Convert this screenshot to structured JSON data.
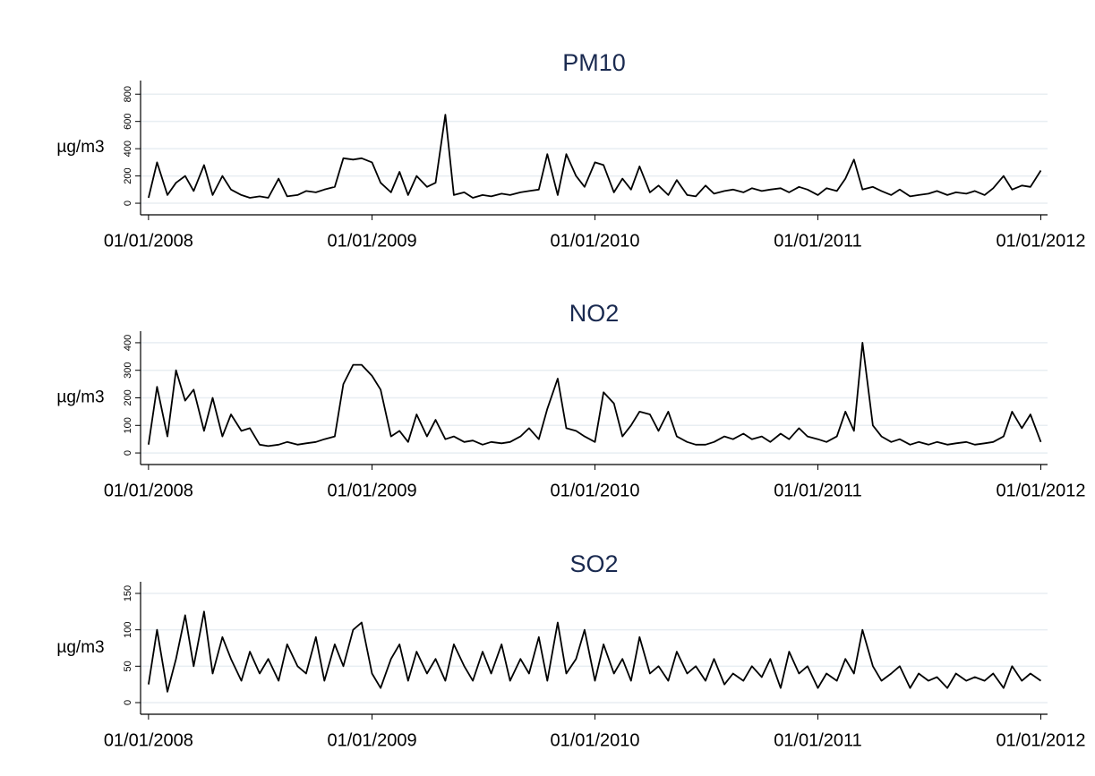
{
  "chart_data": [
    {
      "type": "line",
      "title": "PM10",
      "y_label": "µg/m3",
      "x": [
        "01/01/2008",
        "15/01/2008",
        "01/02/2008",
        "15/02/2008",
        "01/03/2008",
        "15/03/2008",
        "01/04/2008",
        "15/04/2008",
        "01/05/2008",
        "15/05/2008",
        "01/06/2008",
        "15/06/2008",
        "01/07/2008",
        "15/07/2008",
        "01/08/2008",
        "15/08/2008",
        "01/09/2008",
        "15/09/2008",
        "01/10/2008",
        "15/10/2008",
        "01/11/2008",
        "15/11/2008",
        "01/12/2008",
        "15/12/2008",
        "01/01/2009",
        "15/01/2009",
        "01/02/2009",
        "15/02/2009",
        "01/03/2009",
        "15/03/2009",
        "01/04/2009",
        "15/04/2009",
        "01/05/2009",
        "15/05/2009",
        "01/06/2009",
        "15/06/2009",
        "01/07/2009",
        "15/07/2009",
        "01/08/2009",
        "15/08/2009",
        "01/09/2009",
        "15/09/2009",
        "01/10/2009",
        "15/10/2009",
        "01/11/2009",
        "15/11/2009",
        "01/12/2009",
        "15/12/2009",
        "01/01/2010",
        "15/01/2010",
        "01/02/2010",
        "15/02/2010",
        "01/03/2010",
        "15/03/2010",
        "01/04/2010",
        "15/04/2010",
        "01/05/2010",
        "15/05/2010",
        "01/06/2010",
        "15/06/2010",
        "01/07/2010",
        "15/07/2010",
        "01/08/2010",
        "15/08/2010",
        "01/09/2010",
        "15/09/2010",
        "01/10/2010",
        "15/10/2010",
        "01/11/2010",
        "15/11/2010",
        "01/12/2010",
        "15/12/2010",
        "01/01/2011",
        "15/01/2011",
        "01/02/2011",
        "15/02/2011",
        "01/03/2011",
        "15/03/2011",
        "01/04/2011",
        "15/04/2011",
        "01/05/2011",
        "15/05/2011",
        "01/06/2011",
        "15/06/2011",
        "01/07/2011",
        "15/07/2011",
        "01/08/2011",
        "15/08/2011",
        "01/09/2011",
        "15/09/2011",
        "01/10/2011",
        "15/10/2011",
        "01/11/2011",
        "15/11/2011",
        "01/12/2011",
        "15/12/2011",
        "01/01/2012"
      ],
      "series": [
        {
          "color": "#000000",
          "values": [
            40,
            300,
            60,
            150,
            200,
            90,
            280,
            60,
            200,
            100,
            60,
            40,
            50,
            40,
            180,
            50,
            60,
            90,
            80,
            100,
            120,
            330,
            320,
            330,
            300,
            150,
            80,
            230,
            60,
            200,
            120,
            150,
            650,
            60,
            80,
            40,
            60,
            50,
            70,
            60,
            80,
            90,
            100,
            360,
            60,
            360,
            200,
            120,
            300,
            280,
            80,
            180,
            100,
            270,
            80,
            130,
            60,
            170,
            60,
            50,
            130,
            70,
            90,
            100,
            80,
            110,
            90,
            100,
            110,
            80,
            120,
            100,
            60,
            110,
            90,
            180,
            320,
            100,
            120,
            90,
            60,
            100,
            50,
            60,
            70,
            90,
            60,
            80,
            70,
            90,
            60,
            110,
            200,
            100,
            130,
            120,
            240
          ]
        }
      ],
      "xlim": [
        "19/12/2007",
        "12/01/2012"
      ],
      "xticks": [
        "01/01/2008",
        "01/01/2009",
        "01/01/2010",
        "01/01/2011",
        "01/01/2012"
      ],
      "ylim": [
        -85,
        900
      ],
      "yticks": [
        0,
        200,
        400,
        600,
        800
      ],
      "grid": true
    },
    {
      "type": "line",
      "title": "NO2",
      "y_label": "µg/m3",
      "x": [
        "01/01/2008",
        "15/01/2008",
        "01/02/2008",
        "15/02/2008",
        "01/03/2008",
        "15/03/2008",
        "01/04/2008",
        "15/04/2008",
        "01/05/2008",
        "15/05/2008",
        "01/06/2008",
        "15/06/2008",
        "01/07/2008",
        "15/07/2008",
        "01/08/2008",
        "15/08/2008",
        "01/09/2008",
        "15/09/2008",
        "01/10/2008",
        "15/10/2008",
        "01/11/2008",
        "15/11/2008",
        "01/12/2008",
        "15/12/2008",
        "01/01/2009",
        "15/01/2009",
        "01/02/2009",
        "15/02/2009",
        "01/03/2009",
        "15/03/2009",
        "01/04/2009",
        "15/04/2009",
        "01/05/2009",
        "15/05/2009",
        "01/06/2009",
        "15/06/2009",
        "01/07/2009",
        "15/07/2009",
        "01/08/2009",
        "15/08/2009",
        "01/09/2009",
        "15/09/2009",
        "01/10/2009",
        "15/10/2009",
        "01/11/2009",
        "15/11/2009",
        "01/12/2009",
        "15/12/2009",
        "01/01/2010",
        "15/01/2010",
        "01/02/2010",
        "15/02/2010",
        "01/03/2010",
        "15/03/2010",
        "01/04/2010",
        "15/04/2010",
        "01/05/2010",
        "15/05/2010",
        "01/06/2010",
        "15/06/2010",
        "01/07/2010",
        "15/07/2010",
        "01/08/2010",
        "15/08/2010",
        "01/09/2010",
        "15/09/2010",
        "01/10/2010",
        "15/10/2010",
        "01/11/2010",
        "15/11/2010",
        "01/12/2010",
        "15/12/2010",
        "01/01/2011",
        "15/01/2011",
        "01/02/2011",
        "15/02/2011",
        "01/03/2011",
        "15/03/2011",
        "01/04/2011",
        "15/04/2011",
        "01/05/2011",
        "15/05/2011",
        "01/06/2011",
        "15/06/2011",
        "01/07/2011",
        "15/07/2011",
        "01/08/2011",
        "15/08/2011",
        "01/09/2011",
        "15/09/2011",
        "01/10/2011",
        "15/10/2011",
        "01/11/2011",
        "15/11/2011",
        "01/12/2011",
        "15/12/2011",
        "01/01/2012"
      ],
      "series": [
        {
          "color": "#000000",
          "values": [
            30,
            240,
            60,
            300,
            190,
            230,
            80,
            200,
            60,
            140,
            80,
            90,
            30,
            25,
            30,
            40,
            30,
            35,
            40,
            50,
            60,
            250,
            320,
            320,
            280,
            230,
            60,
            80,
            40,
            140,
            60,
            120,
            50,
            60,
            40,
            45,
            30,
            40,
            35,
            40,
            60,
            90,
            50,
            160,
            270,
            90,
            80,
            60,
            40,
            220,
            180,
            60,
            100,
            150,
            140,
            80,
            150,
            60,
            40,
            30,
            30,
            40,
            60,
            50,
            70,
            50,
            60,
            40,
            70,
            50,
            90,
            60,
            50,
            40,
            60,
            150,
            80,
            400,
            100,
            60,
            40,
            50,
            30,
            40,
            30,
            40,
            30,
            35,
            40,
            30,
            35,
            40,
            60,
            150,
            90,
            140,
            40
          ]
        }
      ],
      "xlim": [
        "19/12/2007",
        "12/01/2012"
      ],
      "xticks": [
        "01/01/2008",
        "01/01/2009",
        "01/01/2010",
        "01/01/2011",
        "01/01/2012"
      ],
      "ylim": [
        -42,
        442
      ],
      "yticks": [
        0,
        100,
        200,
        300,
        400
      ],
      "grid": true
    },
    {
      "type": "line",
      "title": "SO2",
      "y_label": "µg/m3",
      "x": [
        "01/01/2008",
        "15/01/2008",
        "01/02/2008",
        "15/02/2008",
        "01/03/2008",
        "15/03/2008",
        "01/04/2008",
        "15/04/2008",
        "01/05/2008",
        "15/05/2008",
        "01/06/2008",
        "15/06/2008",
        "01/07/2008",
        "15/07/2008",
        "01/08/2008",
        "15/08/2008",
        "01/09/2008",
        "15/09/2008",
        "01/10/2008",
        "15/10/2008",
        "01/11/2008",
        "15/11/2008",
        "01/12/2008",
        "15/12/2008",
        "01/01/2009",
        "15/01/2009",
        "01/02/2009",
        "15/02/2009",
        "01/03/2009",
        "15/03/2009",
        "01/04/2009",
        "15/04/2009",
        "01/05/2009",
        "15/05/2009",
        "01/06/2009",
        "15/06/2009",
        "01/07/2009",
        "15/07/2009",
        "01/08/2009",
        "15/08/2009",
        "01/09/2009",
        "15/09/2009",
        "01/10/2009",
        "15/10/2009",
        "01/11/2009",
        "15/11/2009",
        "01/12/2009",
        "15/12/2009",
        "01/01/2010",
        "15/01/2010",
        "01/02/2010",
        "15/02/2010",
        "01/03/2010",
        "15/03/2010",
        "01/04/2010",
        "15/04/2010",
        "01/05/2010",
        "15/05/2010",
        "01/06/2010",
        "15/06/2010",
        "01/07/2010",
        "15/07/2010",
        "01/08/2010",
        "15/08/2010",
        "01/09/2010",
        "15/09/2010",
        "01/10/2010",
        "15/10/2010",
        "01/11/2010",
        "15/11/2010",
        "01/12/2010",
        "15/12/2010",
        "01/01/2011",
        "15/01/2011",
        "01/02/2011",
        "15/02/2011",
        "01/03/2011",
        "15/03/2011",
        "01/04/2011",
        "15/04/2011",
        "01/05/2011",
        "15/05/2011",
        "01/06/2011",
        "15/06/2011",
        "01/07/2011",
        "15/07/2011",
        "01/08/2011",
        "15/08/2011",
        "01/09/2011",
        "15/09/2011",
        "01/10/2011",
        "15/10/2011",
        "01/11/2011",
        "15/11/2011",
        "01/12/2011",
        "15/12/2011",
        "01/01/2012"
      ],
      "series": [
        {
          "color": "#000000",
          "values": [
            25,
            100,
            15,
            60,
            120,
            50,
            125,
            40,
            90,
            60,
            30,
            70,
            40,
            60,
            30,
            80,
            50,
            40,
            90,
            30,
            80,
            50,
            100,
            110,
            40,
            20,
            60,
            80,
            30,
            70,
            40,
            60,
            30,
            80,
            50,
            30,
            70,
            40,
            80,
            30,
            60,
            40,
            90,
            30,
            110,
            40,
            60,
            100,
            30,
            80,
            40,
            60,
            30,
            90,
            40,
            50,
            30,
            70,
            40,
            50,
            30,
            60,
            25,
            40,
            30,
            50,
            35,
            60,
            20,
            70,
            40,
            50,
            20,
            40,
            30,
            60,
            40,
            100,
            50,
            30,
            40,
            50,
            20,
            40,
            30,
            35,
            20,
            40,
            30,
            35,
            30,
            40,
            20,
            50,
            30,
            40,
            30
          ]
        }
      ],
      "xlim": [
        "19/12/2007",
        "12/01/2012"
      ],
      "xticks": [
        "01/01/2008",
        "01/01/2009",
        "01/01/2010",
        "01/01/2011",
        "01/01/2012"
      ],
      "ylim": [
        -16,
        166
      ],
      "yticks": [
        0,
        50,
        100,
        150
      ],
      "grid": true
    }
  ]
}
